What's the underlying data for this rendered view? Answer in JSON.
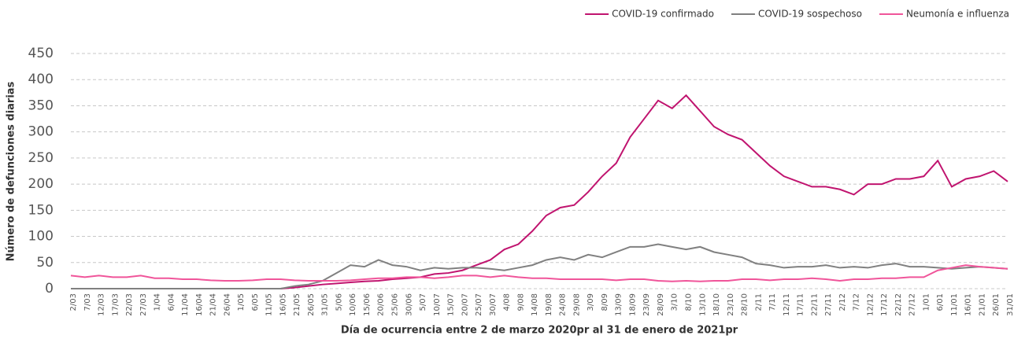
{
  "chart_data": {
    "type": "line",
    "y_label": "Número de defunciones diarias",
    "x_label": "Día de ocurrencia entre 2 de marzo 2020pr al 31 de enero de 2021pr",
    "categories": [
      "2/03",
      "7/03",
      "12/03",
      "17/03",
      "22/03",
      "27/03",
      "1/04",
      "6/04",
      "11/04",
      "16/04",
      "21/04",
      "26/04",
      "1/05",
      "6/05",
      "11/05",
      "16/05",
      "21/05",
      "26/05",
      "31/05",
      "5/06",
      "10/06",
      "15/06",
      "20/06",
      "25/06",
      "30/06",
      "5/07",
      "10/07",
      "15/07",
      "20/07",
      "25/07",
      "30/07",
      "4/08",
      "9/08",
      "14/08",
      "19/08",
      "24/08",
      "29/08",
      "3/09",
      "8/09",
      "13/09",
      "18/09",
      "23/09",
      "28/09",
      "3/10",
      "8/10",
      "13/10",
      "18/10",
      "23/10",
      "28/10",
      "2/11",
      "7/11",
      "12/11",
      "17/11",
      "22/11",
      "27/11",
      "2/12",
      "7/12",
      "12/12",
      "17/12",
      "22/12",
      "27/12",
      "1/01",
      "6/01",
      "11/01",
      "16/01",
      "21/01",
      "26/01",
      "31/01"
    ],
    "series": [
      {
        "name": "COVID-19 confirmado",
        "color": "#c0146f",
        "values": [
          0,
          0,
          0,
          0,
          0,
          0,
          0,
          0,
          0,
          0,
          0,
          0,
          0,
          0,
          0,
          0,
          2,
          5,
          8,
          10,
          12,
          14,
          15,
          18,
          20,
          22,
          28,
          30,
          35,
          45,
          55,
          75,
          85,
          110,
          140,
          155,
          160,
          185,
          215,
          240,
          290,
          325,
          360,
          345,
          370,
          340,
          310,
          295,
          285,
          260,
          235,
          215,
          205,
          195,
          195,
          190,
          180,
          200,
          200,
          210,
          210,
          215,
          245,
          195,
          210,
          215,
          225,
          205
        ]
      },
      {
        "name": "COVID-19 sospechoso",
        "color": "#808080",
        "values": [
          0,
          0,
          0,
          0,
          0,
          0,
          0,
          0,
          0,
          0,
          0,
          0,
          0,
          0,
          0,
          0,
          5,
          8,
          15,
          30,
          45,
          42,
          55,
          45,
          42,
          35,
          40,
          38,
          40,
          40,
          38,
          35,
          40,
          45,
          55,
          60,
          55,
          65,
          60,
          70,
          80,
          80,
          85,
          80,
          75,
          80,
          70,
          65,
          60,
          48,
          45,
          40,
          42,
          42,
          45,
          40,
          42,
          40,
          45,
          48,
          42,
          42,
          40,
          38,
          40,
          42,
          40,
          38
        ]
      },
      {
        "name": "Neumonía e influenza",
        "color": "#f0559a",
        "values": [
          25,
          22,
          25,
          22,
          22,
          25,
          20,
          20,
          18,
          18,
          16,
          15,
          15,
          16,
          18,
          18,
          16,
          15,
          15,
          15,
          16,
          18,
          20,
          20,
          22,
          22,
          20,
          22,
          25,
          25,
          22,
          25,
          22,
          20,
          20,
          18,
          18,
          18,
          18,
          16,
          18,
          18,
          15,
          14,
          15,
          14,
          15,
          15,
          18,
          18,
          16,
          18,
          18,
          20,
          18,
          15,
          18,
          18,
          20,
          20,
          22,
          22,
          35,
          40,
          45,
          42,
          40,
          38
        ]
      }
    ],
    "ylim": [
      0,
      450
    ],
    "yticks": [
      0,
      50,
      100,
      150,
      200,
      250,
      300,
      350,
      400,
      450
    ],
    "grid": true
  }
}
